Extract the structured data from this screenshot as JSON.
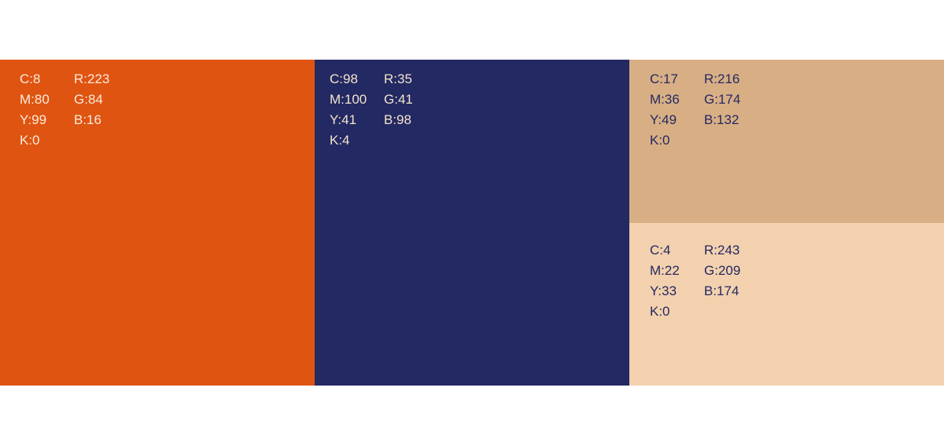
{
  "swatches": [
    {
      "hex": "#DF5410",
      "text_color": "#FBEBDD",
      "cmyk": [
        "C:8",
        "M:80",
        "Y:99",
        "K:0"
      ],
      "rgb": [
        "R:223",
        "G:84",
        "B:16"
      ]
    },
    {
      "hex": "#232962",
      "text_color": "#F3E3CF",
      "cmyk": [
        "C:98",
        "M:100",
        "Y:41",
        "K:4"
      ],
      "rgb": [
        "R:35",
        "G:41",
        "B:98"
      ]
    },
    {
      "hex": "#D8AE84",
      "text_color": "#232962",
      "cmyk": [
        "C:17",
        "M:36",
        "Y:49",
        "K:0"
      ],
      "rgb": [
        "R:216",
        "G:174",
        "B:132"
      ]
    },
    {
      "hex": "#F3D1AE",
      "text_color": "#232962",
      "cmyk": [
        "C:4",
        "M:22",
        "Y:33",
        "K:0"
      ],
      "rgb": [
        "R:243",
        "G:209",
        "B:174"
      ]
    }
  ]
}
